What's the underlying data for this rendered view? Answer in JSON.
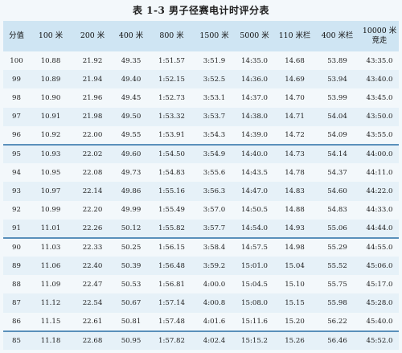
{
  "table_title": "表 1-3  男子径赛电计时评分表",
  "columns": [
    "分值",
    "100 米",
    "200 米",
    "400 米",
    "800 米",
    "1500 米",
    "5000 米",
    "110 米栏",
    "400 米栏",
    "10000 米\n竞走"
  ],
  "rows": [
    [
      "100",
      "10.88",
      "21.92",
      "49.35",
      "1:51.57",
      "3:51.9",
      "14:35.0",
      "14.68",
      "53.89",
      "43:35.0"
    ],
    [
      "99",
      "10.89",
      "21.94",
      "49.40",
      "1:52.15",
      "3:52.5",
      "14:36.0",
      "14.69",
      "53.94",
      "43:40.0"
    ],
    [
      "98",
      "10.90",
      "21.96",
      "49.45",
      "1:52.73",
      "3:53.1",
      "14:37.0",
      "14.70",
      "53.99",
      "43:45.0"
    ],
    [
      "97",
      "10.91",
      "21.98",
      "49.50",
      "1:53.32",
      "3:53.7",
      "14:38.0",
      "14.71",
      "54.04",
      "43:50.0"
    ],
    [
      "96",
      "10.92",
      "22.00",
      "49.55",
      "1:53.91",
      "3:54.3",
      "14:39.0",
      "14.72",
      "54.09",
      "43:55.0"
    ],
    [
      "95",
      "10.93",
      "22.02",
      "49.60",
      "1:54.50",
      "3:54.9",
      "14:40.0",
      "14.73",
      "54.14",
      "44:00.0"
    ],
    [
      "94",
      "10.95",
      "22.08",
      "49.73",
      "1:54.83",
      "3:55.6",
      "14:43.5",
      "14.78",
      "54.37",
      "44:11.0"
    ],
    [
      "93",
      "10.97",
      "22.14",
      "49.86",
      "1:55.16",
      "3:56.3",
      "14:47.0",
      "14.83",
      "54.60",
      "44:22.0"
    ],
    [
      "92",
      "10.99",
      "22.20",
      "49.99",
      "1:55.49",
      "3:57.0",
      "14:50.5",
      "14.88",
      "54.83",
      "44:33.0"
    ],
    [
      "91",
      "11.01",
      "22.26",
      "50.12",
      "1:55.82",
      "3:57.7",
      "14:54.0",
      "14.93",
      "55.06",
      "44:44.0"
    ],
    [
      "90",
      "11.03",
      "22.33",
      "50.25",
      "1:56.15",
      "3:58.4",
      "14:57.5",
      "14.98",
      "55.29",
      "44:55.0"
    ],
    [
      "89",
      "11.06",
      "22.40",
      "50.39",
      "1:56.48",
      "3:59.2",
      "15:01.0",
      "15.04",
      "55.52",
      "45:06.0"
    ],
    [
      "88",
      "11.09",
      "22.47",
      "50.53",
      "1:56.81",
      "4:00.0",
      "15:04.5",
      "15.10",
      "55.75",
      "45:17.0"
    ],
    [
      "87",
      "11.12",
      "22.54",
      "50.67",
      "1:57.14",
      "4:00.8",
      "15:08.0",
      "15.15",
      "55.98",
      "45:28.0"
    ],
    [
      "86",
      "11.15",
      "22.61",
      "50.81",
      "1:57.48",
      "4:01.6",
      "15:11.6",
      "15.20",
      "56.22",
      "45:40.0"
    ],
    [
      "85",
      "11.18",
      "22.68",
      "50.95",
      "1:57.82",
      "4:02.4",
      "15:15.2",
      "15.26",
      "56.46",
      "45:52.0"
    ]
  ],
  "group_start_rows": [
    5,
    10,
    15
  ]
}
